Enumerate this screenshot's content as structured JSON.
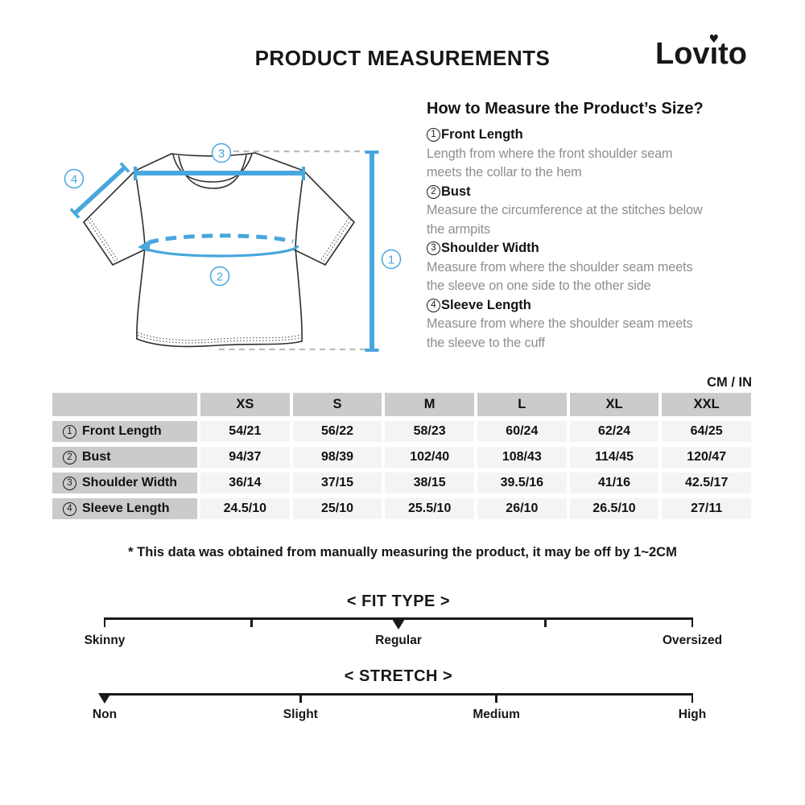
{
  "header": {
    "title": "PRODUCT MEASUREMENTS",
    "brand": "Lovito"
  },
  "how_to": {
    "heading": "How to Measure the Product’s Size?",
    "items": [
      {
        "num": "1",
        "label": "Front Length",
        "desc_lines": [
          "Length from where the front shoulder seam",
          "meets the collar to the hem"
        ]
      },
      {
        "num": "2",
        "label": "Bust",
        "desc_lines": [
          "Measure the circumference at the stitches below",
          "the armpits"
        ]
      },
      {
        "num": "3",
        "label": "Shoulder Width",
        "desc_lines": [
          "Measure from where the shoulder seam meets",
          "the sleeve on one side to the other side"
        ]
      },
      {
        "num": "4",
        "label": "Sleeve Length",
        "desc_lines": [
          "Measure from where the shoulder seam meets",
          "the sleeve to the cuff"
        ]
      }
    ]
  },
  "diagram": {
    "markers": [
      "1",
      "2",
      "3",
      "4"
    ]
  },
  "table": {
    "unit_label": "CM / IN",
    "columns": [
      "XS",
      "S",
      "M",
      "L",
      "XL",
      "XXL"
    ],
    "rows": [
      {
        "num": "1",
        "label": "Front Length",
        "values": [
          "54/21",
          "56/22",
          "58/23",
          "60/24",
          "62/24",
          "64/25"
        ]
      },
      {
        "num": "2",
        "label": "Bust",
        "values": [
          "94/37",
          "98/39",
          "102/40",
          "108/43",
          "114/45",
          "120/47"
        ]
      },
      {
        "num": "3",
        "label": "Shoulder Width",
        "values": [
          "36/14",
          "37/15",
          "38/15",
          "39.5/16",
          "41/16",
          "42.5/17"
        ]
      },
      {
        "num": "4",
        "label": "Sleeve Length",
        "values": [
          "24.5/10",
          "25/10",
          "25.5/10",
          "26/10",
          "26.5/10",
          "27/11"
        ]
      }
    ],
    "footnote": "* This data was obtained from manually measuring the product, it may be off by 1~2CM"
  },
  "scales": {
    "fit_type": {
      "title": "< FIT TYPE >",
      "labels": [
        "Skinny",
        "Regular",
        "Oversized"
      ],
      "selected": "Regular"
    },
    "stretch": {
      "title": "< STRETCH >",
      "labels": [
        "Non",
        "Slight",
        "Medium",
        "High"
      ],
      "selected": "Non"
    }
  },
  "colors": {
    "accent_blue": "#48a7dd",
    "line_dark": "#1a1a1a",
    "desc_gray": "#8e8e8e",
    "cell_gray": "#cbcbcb",
    "cell_light": "#f4f4f4"
  }
}
